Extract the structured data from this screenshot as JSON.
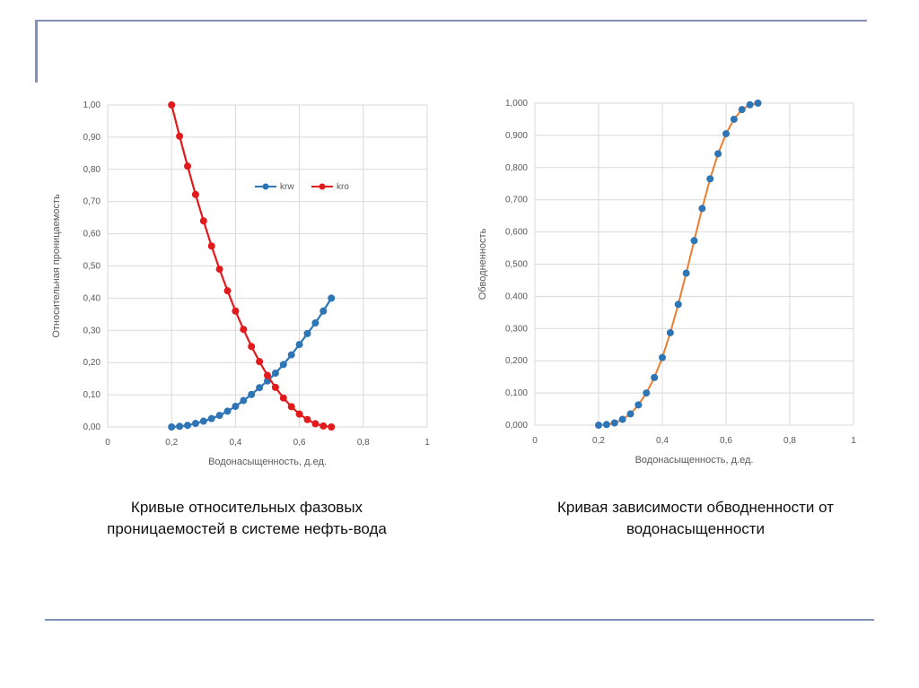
{
  "colors": {
    "frame": "#8191b8",
    "grid": "#d9d9d9",
    "axis_text": "#595959",
    "krw": "#2e75b6",
    "kro": "#e31a1c",
    "fw_line": "#ed7d31",
    "fw_marker": "#2e75b6"
  },
  "chart_data": [
    {
      "type": "line",
      "title": "",
      "xlabel": "Водонасыщенность, д.ед.",
      "ylabel": "Относительная проницаемость",
      "xlim": [
        0,
        1
      ],
      "ylim": [
        0,
        1
      ],
      "xticks": [
        0,
        0.2,
        0.4,
        0.6,
        0.8,
        1
      ],
      "xtick_labels": [
        "0",
        "0,2",
        "0,4",
        "0,6",
        "0,8",
        "1"
      ],
      "yticks": [
        0,
        0.1,
        0.2,
        0.3,
        0.4,
        0.5,
        0.6,
        0.7,
        0.8,
        0.9,
        1.0
      ],
      "ytick_labels": [
        "0,00",
        "0,10",
        "0,20",
        "0,30",
        "0,40",
        "0,50",
        "0,60",
        "0,70",
        "0,80",
        "0,90",
        "1,00"
      ],
      "grid": true,
      "legend_position": "upper-right-inside",
      "x": [
        0.2,
        0.225,
        0.25,
        0.275,
        0.3,
        0.325,
        0.35,
        0.375,
        0.4,
        0.425,
        0.45,
        0.475,
        0.5,
        0.525,
        0.55,
        0.575,
        0.6,
        0.625,
        0.65,
        0.675,
        0.7
      ],
      "series": [
        {
          "name": "krw",
          "color": "#2e75b6",
          "values": [
            0.0,
            0.002,
            0.005,
            0.011,
            0.018,
            0.026,
            0.036,
            0.049,
            0.064,
            0.082,
            0.101,
            0.122,
            0.143,
            0.167,
            0.194,
            0.224,
            0.256,
            0.29,
            0.323,
            0.36,
            0.4
          ]
        },
        {
          "name": "kro",
          "color": "#e31a1c",
          "values": [
            1.0,
            0.903,
            0.81,
            0.722,
            0.64,
            0.562,
            0.49,
            0.423,
            0.36,
            0.303,
            0.25,
            0.203,
            0.16,
            0.123,
            0.09,
            0.063,
            0.04,
            0.023,
            0.01,
            0.003,
            0.0
          ]
        }
      ]
    },
    {
      "type": "line",
      "title": "",
      "xlabel": "Водонасыщенность, д.ед.",
      "ylabel": "Обводненность",
      "xlim": [
        0,
        1
      ],
      "ylim": [
        0,
        1
      ],
      "xticks": [
        0,
        0.2,
        0.4,
        0.6,
        0.8,
        1
      ],
      "xtick_labels": [
        "0",
        "0,2",
        "0,4",
        "0,6",
        "0,8",
        "1"
      ],
      "yticks": [
        0,
        0.1,
        0.2,
        0.3,
        0.4,
        0.5,
        0.6,
        0.7,
        0.8,
        0.9,
        1.0
      ],
      "ytick_labels": [
        "0,000",
        "0,100",
        "0,200",
        "0,300",
        "0,400",
        "0,500",
        "0,600",
        "0,700",
        "0,800",
        "0,900",
        "1,000"
      ],
      "grid": true,
      "x": [
        0.2,
        0.225,
        0.25,
        0.275,
        0.3,
        0.325,
        0.35,
        0.375,
        0.4,
        0.425,
        0.45,
        0.475,
        0.5,
        0.525,
        0.55,
        0.575,
        0.6,
        0.625,
        0.65,
        0.675,
        0.7
      ],
      "series": [
        {
          "line_color": "#ed7d31",
          "marker_color": "#2e75b6",
          "values": [
            0.0,
            0.002,
            0.007,
            0.018,
            0.035,
            0.063,
            0.1,
            0.148,
            0.21,
            0.287,
            0.375,
            0.472,
            0.573,
            0.673,
            0.765,
            0.843,
            0.905,
            0.95,
            0.98,
            0.995,
            1.0
          ]
        }
      ]
    }
  ],
  "captions": {
    "left": {
      "line1": "Кривые относительных фазовых",
      "line2": "проницаемостей в системе нефть-вода"
    },
    "right": {
      "line1": "Кривая зависимости обводненности от",
      "line2": "водонасыщенности"
    }
  }
}
